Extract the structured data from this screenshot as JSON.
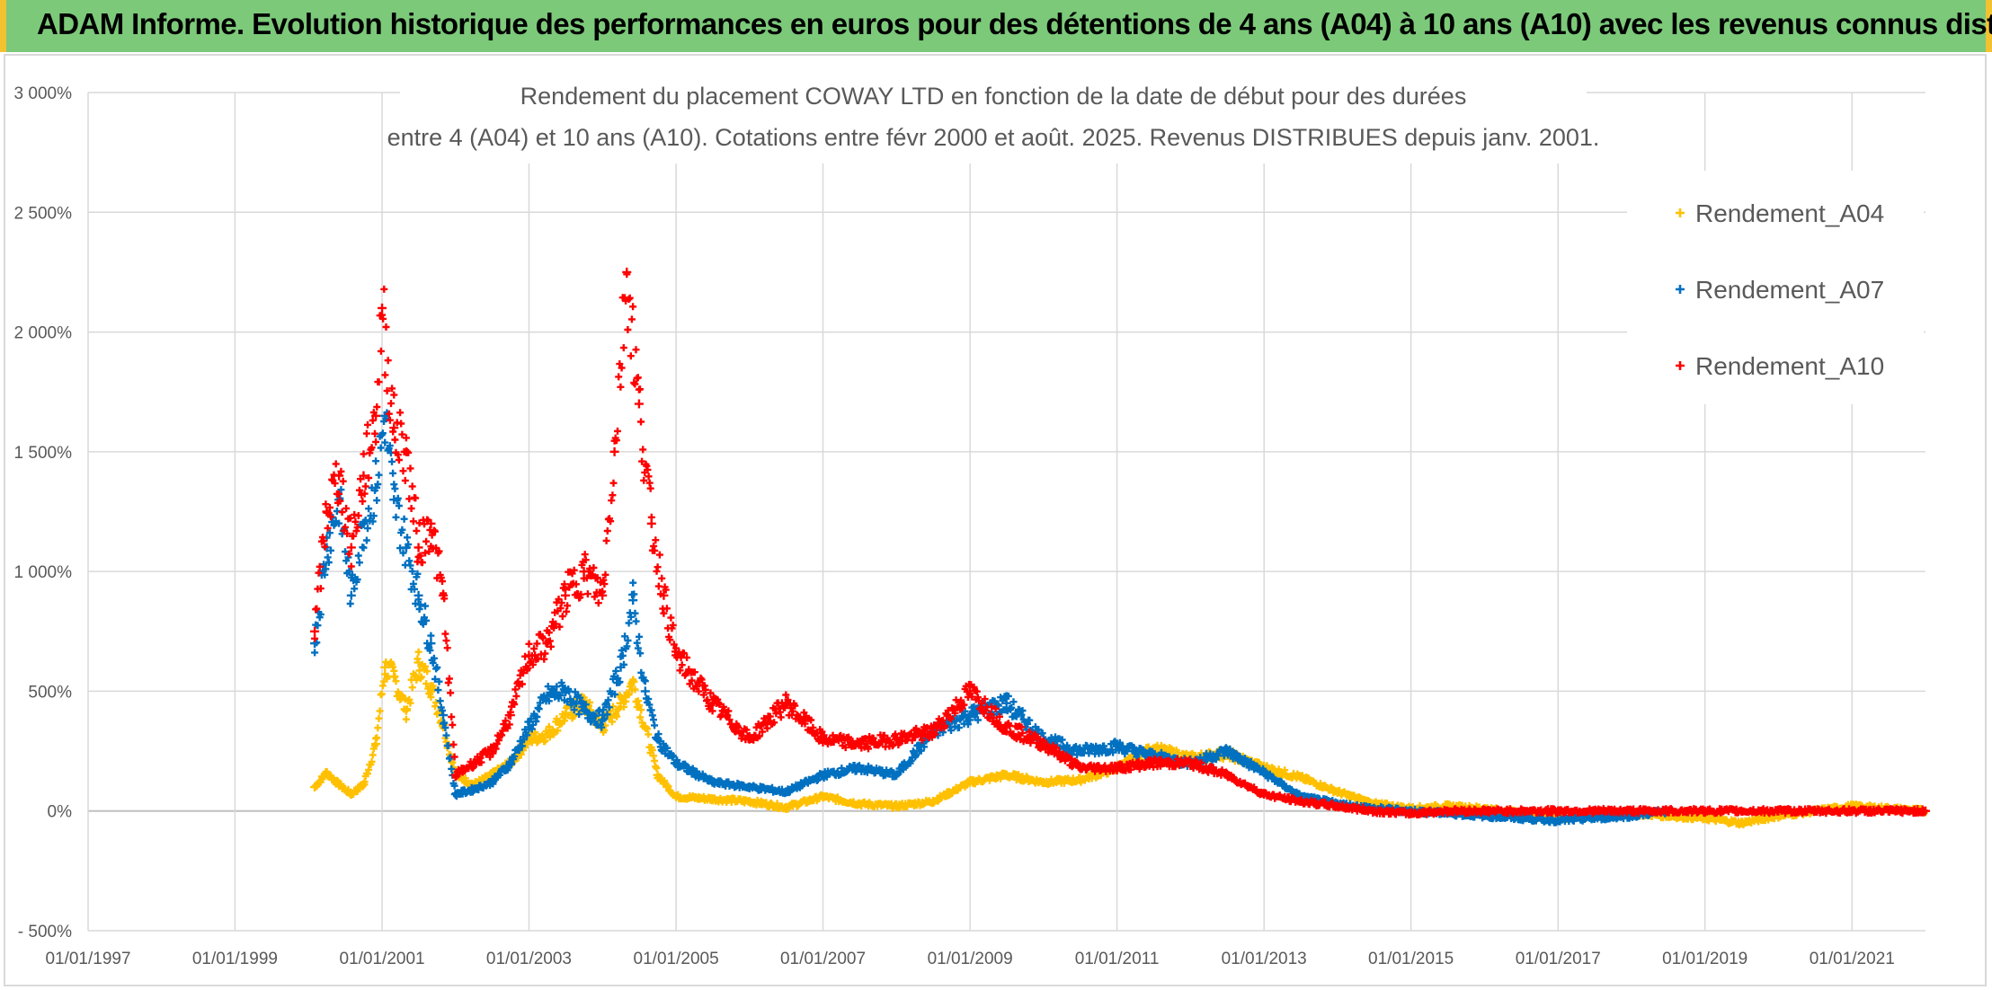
{
  "header": {
    "title": "ADAM Informe. Evolution historique des performances en euros pour des détentions de 4 ans (A04) à 10 ans (A10) avec les revenus connus distribués"
  },
  "chart_data": {
    "type": "scatter",
    "title_lines": [
      "Rendement du placement COWAY LTD en fonction de la date de début pour des durées",
      "entre 4 (A04) et 10 ans (A10). Cotations entre févr 2000 et août. 2025. Revenus DISTRIBUES depuis janv. 2001."
    ],
    "xlim": [
      "1997-01-01",
      "2022-01-01"
    ],
    "x_ticks": [
      "01/01/1997",
      "01/01/1999",
      "01/01/2001",
      "01/01/2003",
      "01/01/2005",
      "01/01/2007",
      "01/01/2009",
      "01/01/2011",
      "01/01/2013",
      "01/01/2015",
      "01/01/2017",
      "01/01/2019",
      "01/01/2021"
    ],
    "ylim": [
      -500,
      3000
    ],
    "y_ticks": [
      "- 500%",
      "0%",
      "500%",
      "1 000%",
      "1 500%",
      "2 000%",
      "2 500%",
      "3 000%"
    ],
    "grid": true,
    "legend_position": "top-right",
    "marker": "+",
    "series": [
      {
        "name": "Rendement_A04",
        "color": "#ffc000",
        "points": [
          [
            "2000-02-01",
            100
          ],
          [
            "2000-04-01",
            160
          ],
          [
            "2000-06-01",
            110
          ],
          [
            "2000-08-01",
            70
          ],
          [
            "2000-10-01",
            110
          ],
          [
            "2000-12-01",
            280
          ],
          [
            "2001-01-15",
            600
          ],
          [
            "2001-03-01",
            560
          ],
          [
            "2001-05-01",
            420
          ],
          [
            "2001-07-01",
            620
          ],
          [
            "2001-09-01",
            520
          ],
          [
            "2001-11-01",
            360
          ],
          [
            "2002-01-01",
            150
          ],
          [
            "2002-04-01",
            110
          ],
          [
            "2002-07-01",
            150
          ],
          [
            "2002-10-01",
            200
          ],
          [
            "2003-01-01",
            300
          ],
          [
            "2003-04-01",
            320
          ],
          [
            "2003-07-01",
            400
          ],
          [
            "2003-10-01",
            450
          ],
          [
            "2004-01-01",
            350
          ],
          [
            "2004-04-01",
            450
          ],
          [
            "2004-06-01",
            540
          ],
          [
            "2004-08-01",
            350
          ],
          [
            "2004-10-01",
            150
          ],
          [
            "2005-01-01",
            60
          ],
          [
            "2005-07-01",
            50
          ],
          [
            "2006-01-01",
            40
          ],
          [
            "2006-07-01",
            15
          ],
          [
            "2007-01-01",
            60
          ],
          [
            "2007-07-01",
            30
          ],
          [
            "2008-01-01",
            20
          ],
          [
            "2008-07-01",
            40
          ],
          [
            "2009-01-01",
            120
          ],
          [
            "2009-07-01",
            150
          ],
          [
            "2010-01-01",
            120
          ],
          [
            "2010-07-01",
            130
          ],
          [
            "2011-01-01",
            180
          ],
          [
            "2011-07-01",
            260
          ],
          [
            "2012-01-01",
            220
          ],
          [
            "2012-07-01",
            240
          ],
          [
            "2013-01-01",
            180
          ],
          [
            "2013-07-01",
            140
          ],
          [
            "2014-01-01",
            80
          ],
          [
            "2014-07-01",
            30
          ],
          [
            "2015-01-01",
            10
          ],
          [
            "2015-07-01",
            20
          ],
          [
            "2016-01-01",
            10
          ],
          [
            "2016-07-01",
            -10
          ],
          [
            "2017-01-01",
            -30
          ],
          [
            "2017-07-01",
            -20
          ],
          [
            "2018-01-01",
            -10
          ],
          [
            "2018-07-01",
            -20
          ],
          [
            "2019-01-01",
            -30
          ],
          [
            "2019-07-01",
            -50
          ],
          [
            "2020-01-01",
            -20
          ],
          [
            "2020-07-01",
            0
          ],
          [
            "2021-01-01",
            20
          ],
          [
            "2021-07-01",
            10
          ],
          [
            "2022-01-01",
            0
          ]
        ]
      },
      {
        "name": "Rendement_A07",
        "color": "#0070c0",
        "points": [
          [
            "2000-02-01",
            700
          ],
          [
            "2000-04-01",
            1100
          ],
          [
            "2000-06-01",
            1300
          ],
          [
            "2000-08-01",
            900
          ],
          [
            "2000-10-01",
            1200
          ],
          [
            "2000-12-01",
            1350
          ],
          [
            "2001-01-15",
            1650
          ],
          [
            "2001-03-01",
            1300
          ],
          [
            "2001-05-01",
            1100
          ],
          [
            "2001-07-01",
            900
          ],
          [
            "2001-09-01",
            700
          ],
          [
            "2001-11-01",
            400
          ],
          [
            "2002-01-01",
            70
          ],
          [
            "2002-04-01",
            90
          ],
          [
            "2002-07-01",
            120
          ],
          [
            "2002-10-01",
            200
          ],
          [
            "2003-01-01",
            350
          ],
          [
            "2003-04-01",
            480
          ],
          [
            "2003-07-01",
            500
          ],
          [
            "2003-10-01",
            420
          ],
          [
            "2004-01-01",
            380
          ],
          [
            "2004-04-01",
            600
          ],
          [
            "2004-06-01",
            880
          ],
          [
            "2004-08-01",
            500
          ],
          [
            "2004-10-01",
            300
          ],
          [
            "2005-01-01",
            200
          ],
          [
            "2005-07-01",
            120
          ],
          [
            "2006-01-01",
            100
          ],
          [
            "2006-07-01",
            80
          ],
          [
            "2007-01-01",
            150
          ],
          [
            "2007-07-01",
            180
          ],
          [
            "2008-01-01",
            150
          ],
          [
            "2008-07-01",
            330
          ],
          [
            "2009-01-01",
            400
          ],
          [
            "2009-07-01",
            450
          ],
          [
            "2010-01-01",
            300
          ],
          [
            "2010-07-01",
            250
          ],
          [
            "2011-01-01",
            270
          ],
          [
            "2011-07-01",
            230
          ],
          [
            "2012-01-01",
            200
          ],
          [
            "2012-07-01",
            250
          ],
          [
            "2013-01-01",
            160
          ],
          [
            "2013-07-01",
            60
          ],
          [
            "2014-01-01",
            30
          ],
          [
            "2014-07-01",
            10
          ],
          [
            "2015-01-01",
            0
          ],
          [
            "2015-07-01",
            -10
          ],
          [
            "2016-01-01",
            -20
          ],
          [
            "2016-07-01",
            -30
          ],
          [
            "2017-01-01",
            -40
          ],
          [
            "2017-07-01",
            -30
          ],
          [
            "2018-01-01",
            -20
          ],
          [
            "2018-07-01",
            0
          ]
        ]
      },
      {
        "name": "Rendement_A10",
        "color": "#ff0000",
        "points": [
          [
            "2000-02-01",
            750
          ],
          [
            "2000-04-01",
            1250
          ],
          [
            "2000-06-01",
            1400
          ],
          [
            "2000-08-01",
            1100
          ],
          [
            "2000-10-01",
            1400
          ],
          [
            "2000-12-01",
            1650
          ],
          [
            "2001-01-01",
            2100
          ],
          [
            "2001-03-01",
            1600
          ],
          [
            "2001-05-01",
            1500
          ],
          [
            "2001-07-01",
            1100
          ],
          [
            "2001-09-01",
            1200
          ],
          [
            "2001-11-01",
            900
          ],
          [
            "2002-01-01",
            150
          ],
          [
            "2002-04-01",
            200
          ],
          [
            "2002-07-01",
            250
          ],
          [
            "2002-10-01",
            400
          ],
          [
            "2003-01-01",
            650
          ],
          [
            "2003-04-01",
            700
          ],
          [
            "2003-07-01",
            900
          ],
          [
            "2003-10-01",
            1000
          ],
          [
            "2004-01-01",
            900
          ],
          [
            "2004-03-01",
            1500
          ],
          [
            "2004-05-01",
            2250
          ],
          [
            "2004-07-01",
            1700
          ],
          [
            "2004-09-01",
            1200
          ],
          [
            "2004-11-01",
            900
          ],
          [
            "2005-01-01",
            650
          ],
          [
            "2005-07-01",
            450
          ],
          [
            "2006-01-01",
            300
          ],
          [
            "2006-07-01",
            450
          ],
          [
            "2007-01-01",
            300
          ],
          [
            "2007-07-01",
            280
          ],
          [
            "2008-01-01",
            300
          ],
          [
            "2008-07-01",
            330
          ],
          [
            "2009-01-01",
            500
          ],
          [
            "2009-07-01",
            350
          ],
          [
            "2010-01-01",
            280
          ],
          [
            "2010-07-01",
            180
          ],
          [
            "2011-01-01",
            180
          ],
          [
            "2011-07-01",
            200
          ],
          [
            "2012-01-01",
            200
          ],
          [
            "2012-07-01",
            150
          ],
          [
            "2013-01-01",
            70
          ],
          [
            "2013-07-01",
            40
          ],
          [
            "2014-01-01",
            20
          ],
          [
            "2014-07-01",
            0
          ],
          [
            "2015-01-01",
            -10
          ],
          [
            "2015-07-01",
            0
          ],
          [
            "2016-01-01",
            0
          ],
          [
            "2016-07-01",
            0
          ],
          [
            "2017-01-01",
            0
          ],
          [
            "2017-07-01",
            0
          ],
          [
            "2018-01-01",
            0
          ],
          [
            "2018-07-01",
            0
          ],
          [
            "2019-01-01",
            0
          ],
          [
            "2019-07-01",
            0
          ],
          [
            "2020-01-01",
            0
          ],
          [
            "2020-07-01",
            0
          ],
          [
            "2021-01-01",
            0
          ],
          [
            "2021-07-01",
            0
          ],
          [
            "2022-01-01",
            0
          ]
        ]
      }
    ]
  }
}
